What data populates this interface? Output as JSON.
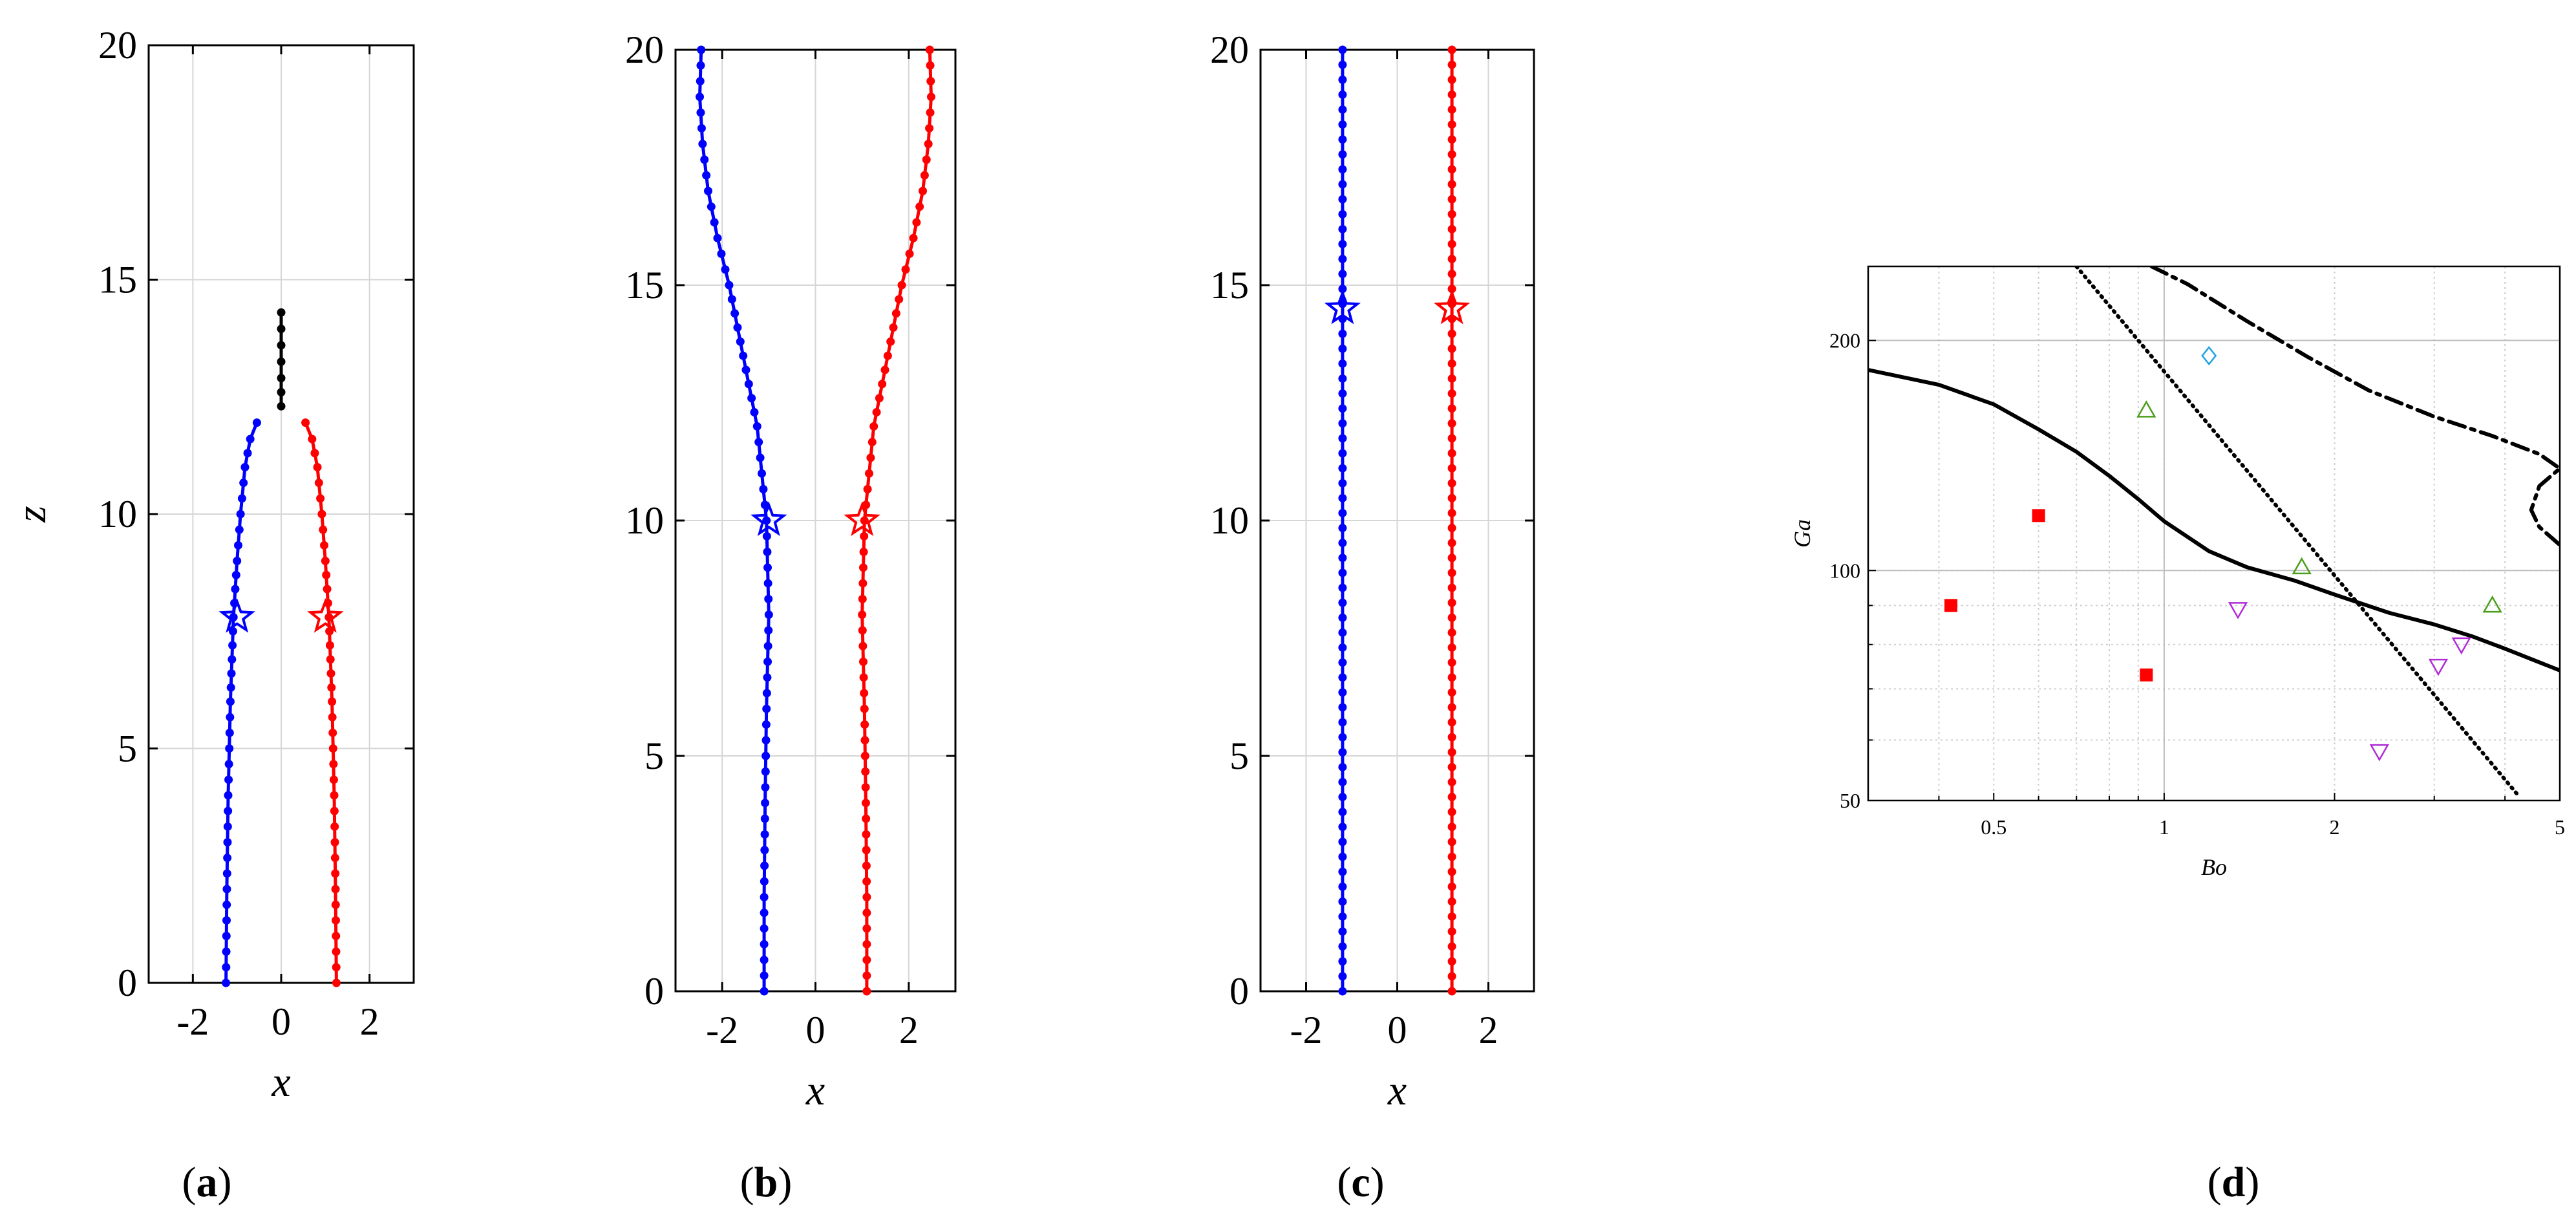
{
  "chart_data": [
    {
      "id": "a",
      "type": "line",
      "panel_label": {
        "open": "(",
        "letter": "a",
        "close": ")"
      },
      "xlabel": "x",
      "ylabel": "z",
      "xlim": [
        -3,
        3
      ],
      "ylim": [
        0,
        20
      ],
      "xticks": [
        -2,
        0,
        2
      ],
      "yticks": [
        0,
        5,
        10,
        15,
        20
      ],
      "xtick_labels": [
        "-2",
        "0",
        "2"
      ],
      "ytick_labels": [
        "0",
        "5",
        "10",
        "15",
        "20"
      ],
      "grid": true,
      "series": [
        {
          "color": "#0000ff",
          "x": [
            -1.25,
            -1.23,
            -1.2,
            -1.15,
            -1.08,
            -1.0,
            -0.92,
            -0.82,
            -0.7,
            -0.55
          ],
          "y": [
            0,
            2,
            4,
            6,
            7.8,
            9,
            10,
            11,
            11.6,
            11.95
          ],
          "star": [
            -1.0,
            7.8
          ]
        },
        {
          "color": "#ff0000",
          "x": [
            1.25,
            1.23,
            1.2,
            1.15,
            1.08,
            1.0,
            0.92,
            0.82,
            0.7,
            0.55
          ],
          "y": [
            0,
            2,
            4,
            6,
            7.8,
            9,
            10,
            11,
            11.6,
            11.95
          ],
          "star": [
            1.0,
            7.8
          ]
        },
        {
          "color": "#000000",
          "x": [
            0.0,
            0.0,
            0.0,
            0.0
          ],
          "y": [
            12.3,
            12.9,
            13.6,
            14.3
          ]
        }
      ]
    },
    {
      "id": "b",
      "type": "line",
      "panel_label": {
        "open": "(",
        "letter": "b",
        "close": ")"
      },
      "xlabel": "x",
      "ylabel": "",
      "xlim": [
        -3,
        3
      ],
      "ylim": [
        0,
        20
      ],
      "xticks": [
        -2,
        0,
        2
      ],
      "yticks": [
        0,
        5,
        10,
        15,
        20
      ],
      "xtick_labels": [
        "-2",
        "0",
        "2"
      ],
      "ytick_labels": [
        "0",
        "5",
        "10",
        "15",
        "20"
      ],
      "grid": true,
      "series": [
        {
          "color": "#0000ff",
          "x": [
            -1.1,
            -1.1,
            -1.08,
            -1.05,
            -1.0,
            -1.05,
            -1.25,
            -1.55,
            -1.85,
            -2.1,
            -2.3,
            -2.42,
            -2.48,
            -2.45
          ],
          "y": [
            0,
            2,
            4,
            6,
            8,
            10,
            12,
            13.5,
            15,
            16,
            17,
            18,
            19,
            20
          ],
          "star": [
            -1.0,
            10
          ]
        },
        {
          "color": "#ff0000",
          "x": [
            1.1,
            1.1,
            1.08,
            1.05,
            1.0,
            1.05,
            1.25,
            1.55,
            1.85,
            2.1,
            2.3,
            2.42,
            2.48,
            2.45
          ],
          "y": [
            0,
            2,
            4,
            6,
            8,
            10,
            12,
            13.5,
            15,
            16,
            17,
            18,
            19,
            20
          ],
          "star": [
            1.0,
            10
          ]
        }
      ]
    },
    {
      "id": "c",
      "type": "line",
      "panel_label": {
        "open": "(",
        "letter": "c",
        "close": ")"
      },
      "xlabel": "x",
      "ylabel": "",
      "xlim": [
        -3,
        3
      ],
      "ylim": [
        0,
        20
      ],
      "xticks": [
        -2,
        0,
        2
      ],
      "yticks": [
        0,
        5,
        10,
        15,
        20
      ],
      "xtick_labels": [
        "-2",
        "0",
        "2"
      ],
      "ytick_labels": [
        "0",
        "5",
        "10",
        "15",
        "20"
      ],
      "grid": true,
      "series": [
        {
          "color": "#0000ff",
          "x": [
            -1.2,
            -1.2
          ],
          "y": [
            0,
            20
          ],
          "star": [
            -1.2,
            14.5
          ]
        },
        {
          "color": "#ff0000",
          "x": [
            1.2,
            1.2
          ],
          "y": [
            0,
            20
          ],
          "star": [
            1.2,
            14.5
          ]
        }
      ]
    },
    {
      "id": "d",
      "type": "scatter",
      "panel_label": {
        "open": "(",
        "letter": "d",
        "close": ")"
      },
      "xlabel": "Bo",
      "ylabel": "Ga",
      "xscale": "log",
      "yscale": "log",
      "xlim": [
        0.3,
        5
      ],
      "ylim": [
        50,
        250
      ],
      "xtick_labels": [
        {
          "v": 0.5,
          "t": "0.5"
        },
        {
          "v": 1,
          "t": "1"
        },
        {
          "v": 2,
          "t": "2"
        },
        {
          "v": 5,
          "t": "5"
        }
      ],
      "ytick_labels": [
        {
          "v": 50,
          "t": "50"
        },
        {
          "v": 100,
          "t": "100"
        },
        {
          "v": 200,
          "t": "200"
        }
      ],
      "grid": true,
      "curves": [
        {
          "style": "solid",
          "x": [
            0.3,
            0.4,
            0.5,
            0.6,
            0.7,
            0.8,
            0.9,
            1.0,
            1.2,
            1.4,
            1.7,
            2.0,
            2.5,
            3.0,
            3.5,
            4.0,
            5.0
          ],
          "y": [
            183,
            175,
            165,
            153,
            143,
            133,
            124,
            116,
            106,
            101,
            97,
            93,
            88,
            85,
            82,
            79,
            74
          ]
        },
        {
          "style": "dotted",
          "x": [
            0.7,
            4.2
          ],
          "y": [
            250,
            51
          ]
        },
        {
          "style": "dashdot",
          "x": [
            0.95,
            1.1,
            1.4,
            1.8,
            2.3,
            3.0,
            3.8,
            4.6,
            5.0,
            4.6,
            4.45,
            4.6,
            5.0
          ],
          "y": [
            250,
            237,
            212,
            190,
            172,
            159,
            150,
            142,
            136,
            129,
            120,
            114,
            108
          ]
        }
      ],
      "markers": [
        {
          "symbol": "square",
          "color": "#ff0000",
          "x": 0.42,
          "y": 90
        },
        {
          "symbol": "square",
          "color": "#ff0000",
          "x": 0.6,
          "y": 118
        },
        {
          "symbol": "square",
          "color": "#ff0000",
          "x": 0.93,
          "y": 73
        },
        {
          "symbol": "triangle-up",
          "color": "#4a9e1a",
          "x": 0.93,
          "y": 162
        },
        {
          "symbol": "triangle-up",
          "color": "#4a9e1a",
          "x": 1.75,
          "y": 101
        },
        {
          "symbol": "triangle-up",
          "color": "#4a9e1a",
          "x": 3.8,
          "y": 90
        },
        {
          "symbol": "diamond",
          "color": "#1ba3e0",
          "x": 1.2,
          "y": 191
        },
        {
          "symbol": "triangle-down",
          "color": "#b02cd6",
          "x": 1.35,
          "y": 89
        },
        {
          "symbol": "triangle-down",
          "color": "#b02cd6",
          "x": 2.4,
          "y": 58
        },
        {
          "symbol": "triangle-down",
          "color": "#b02cd6",
          "x": 3.05,
          "y": 75
        },
        {
          "symbol": "triangle-down",
          "color": "#b02cd6",
          "x": 3.35,
          "y": 80
        }
      ]
    }
  ]
}
